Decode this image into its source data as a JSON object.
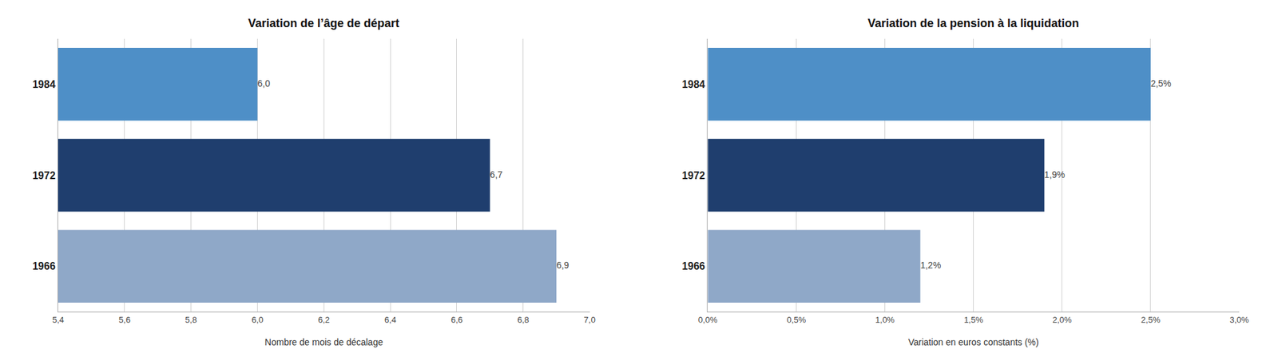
{
  "chart_data": [
    {
      "type": "bar",
      "orientation": "horizontal",
      "title": "Variation de l’âge de départ",
      "categories": [
        "1984",
        "1972",
        "1966"
      ],
      "values": [
        6.0,
        6.7,
        6.9
      ],
      "value_labels": [
        "6,0",
        "6,7",
        "6,9"
      ],
      "data_labels": true,
      "colors": [
        "#4e8fc7",
        "#1f3e6e",
        "#8fa8c8"
      ],
      "xlabel": "Nombre de mois de décalage",
      "xlim": [
        5.4,
        7.0
      ],
      "xticks": [
        {
          "value": 5.4,
          "label": "5,4"
        },
        {
          "value": 5.6,
          "label": "5,6"
        },
        {
          "value": 5.8,
          "label": "5,8"
        },
        {
          "value": 6.0,
          "label": "6,0"
        },
        {
          "value": 6.2,
          "label": "6,2"
        },
        {
          "value": 6.4,
          "label": "6,4"
        },
        {
          "value": 6.6,
          "label": "6,6"
        },
        {
          "value": 6.8,
          "label": "6,8"
        },
        {
          "value": 7.0,
          "label": "7,0"
        }
      ],
      "grid": true
    },
    {
      "type": "bar",
      "orientation": "horizontal",
      "title": "Variation de la pension à la liquidation",
      "categories": [
        "1984",
        "1972",
        "1966"
      ],
      "values": [
        0.025,
        0.019,
        0.012
      ],
      "value_labels": [
        "2,5%",
        "1,9%",
        "1,2%"
      ],
      "data_labels": true,
      "colors": [
        "#4e8fc7",
        "#1f3e6e",
        "#8fa8c8"
      ],
      "xlabel": "Variation en euros constants (%)",
      "xlim": [
        0.0,
        0.03
      ],
      "xticks": [
        {
          "value": 0.0,
          "label": "0,0%"
        },
        {
          "value": 0.005,
          "label": "0,5%"
        },
        {
          "value": 0.01,
          "label": "1,0%"
        },
        {
          "value": 0.015,
          "label": "1,5%"
        },
        {
          "value": 0.02,
          "label": "2,0%"
        },
        {
          "value": 0.025,
          "label": "2,5%"
        },
        {
          "value": 0.03,
          "label": "3,0%"
        }
      ],
      "grid": true
    }
  ]
}
